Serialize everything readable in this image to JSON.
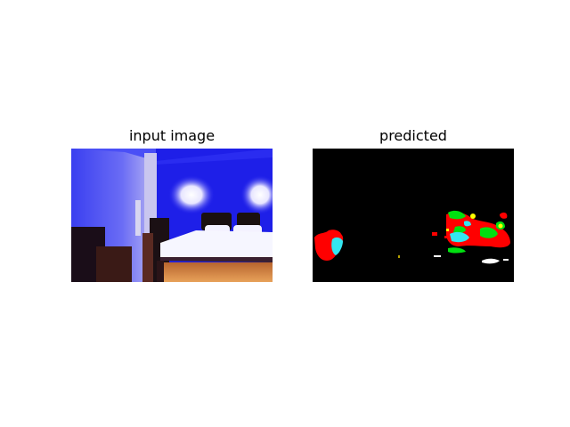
{
  "panels": [
    {
      "title": "input image"
    },
    {
      "title": "predicted"
    }
  ],
  "colors": {
    "background": "#000000",
    "red": "#ff0000",
    "green": "#00ff00",
    "cyan": "#00ffff",
    "yellow": "#ffff00",
    "white": "#ffffff"
  }
}
